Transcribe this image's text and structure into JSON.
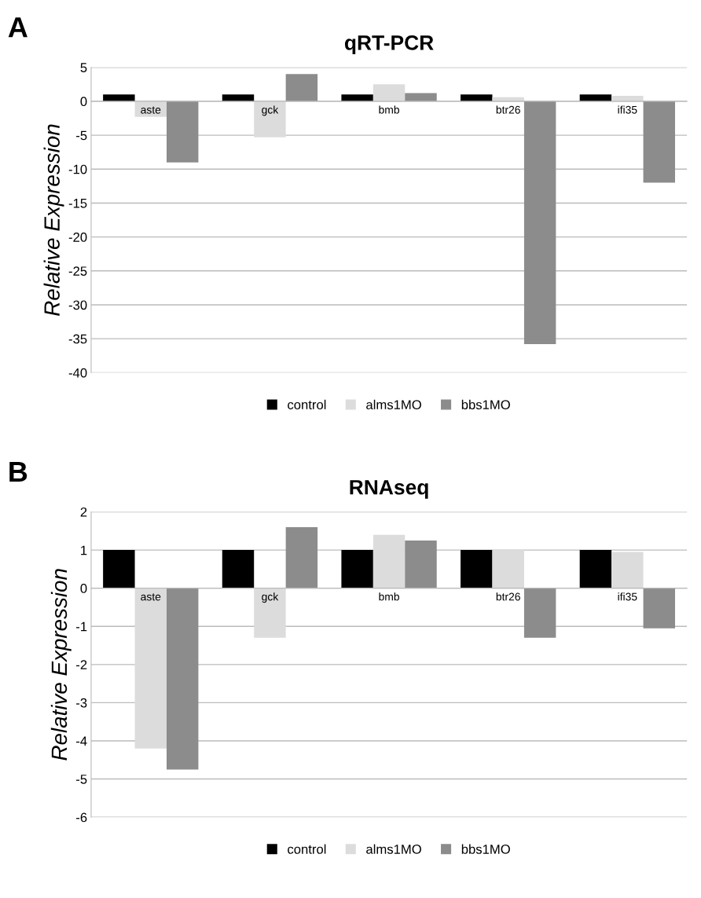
{
  "chart_data": [
    {
      "type": "bar",
      "title": "qRT-PCR",
      "ylabel": "Relative Expression",
      "annotations": [
        "A"
      ],
      "categories": [
        "aste",
        "gck",
        "bmb",
        "btr26",
        "ifi35"
      ],
      "series": [
        {
          "name": "control",
          "color": "#000000",
          "values": [
            1,
            1,
            1,
            1,
            1
          ]
        },
        {
          "name": "alms1MO",
          "color": "#dcdcdc",
          "values": [
            -2.3,
            -5.3,
            2.5,
            0.6,
            0.8
          ]
        },
        {
          "name": "bbs1MO",
          "color": "#8c8c8c",
          "values": [
            -9,
            4,
            1.2,
            -35.8,
            -12
          ]
        }
      ],
      "ylim": [
        -40,
        5
      ],
      "yticks": [
        -40,
        -35,
        -30,
        -25,
        -20,
        -15,
        -10,
        -5,
        0,
        5
      ],
      "grid": "y",
      "legend": "bottom"
    },
    {
      "type": "bar",
      "title": "RNAseq",
      "ylabel": "Relative Expression",
      "annotations": [
        "B"
      ],
      "categories": [
        "aste",
        "gck",
        "bmb",
        "btr26",
        "ifi35"
      ],
      "series": [
        {
          "name": "control",
          "color": "#000000",
          "values": [
            1,
            1,
            1,
            1,
            1
          ]
        },
        {
          "name": "alms1MO",
          "color": "#dcdcdc",
          "values": [
            -4.2,
            -1.3,
            1.4,
            1.0,
            0.95
          ]
        },
        {
          "name": "bbs1MO",
          "color": "#8c8c8c",
          "values": [
            -4.75,
            1.6,
            1.25,
            -1.3,
            -1.05
          ]
        }
      ],
      "ylim": [
        -6,
        2
      ],
      "yticks": [
        -6,
        -5,
        -4,
        -3,
        -2,
        -1,
        0,
        1,
        2
      ],
      "grid": "y",
      "legend": "bottom"
    }
  ]
}
